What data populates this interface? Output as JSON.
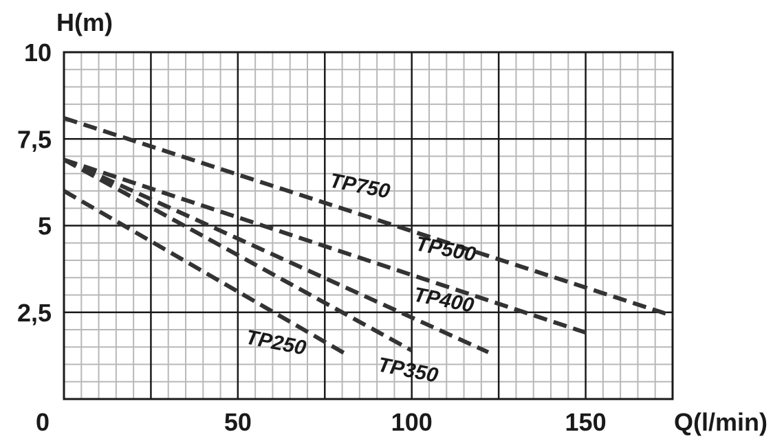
{
  "chart_data": {
    "type": "line",
    "xlabel": "Q(l/min)",
    "ylabel": "H(m)",
    "xlim": [
      0,
      175
    ],
    "ylim": [
      0,
      10
    ],
    "x_ticks": [
      "0",
      "50",
      "100",
      "150"
    ],
    "x_tick_values": [
      0,
      50,
      100,
      150
    ],
    "y_ticks": [
      "2,5",
      "5",
      "7,5",
      "10"
    ],
    "y_tick_values": [
      2.5,
      5,
      7.5,
      10
    ],
    "grid": true,
    "line_color": "#333333",
    "grid_major_color": "#1a1a1a",
    "grid_minor_color": "#b8b8b8",
    "series": [
      {
        "name": "TP750",
        "points": [
          [
            0,
            8.1
          ],
          [
            175,
            2.4
          ]
        ]
      },
      {
        "name": "TP500",
        "points": [
          [
            0,
            6.9
          ],
          [
            152,
            1.85
          ]
        ]
      },
      {
        "name": "TP400",
        "points": [
          [
            0,
            6.9
          ],
          [
            122,
            1.35
          ]
        ]
      },
      {
        "name": "TP350",
        "points": [
          [
            0,
            6.9
          ],
          [
            100,
            1.4
          ]
        ]
      },
      {
        "name": "TP250",
        "points": [
          [
            0,
            6.0
          ],
          [
            81,
            1.3
          ]
        ]
      }
    ]
  }
}
